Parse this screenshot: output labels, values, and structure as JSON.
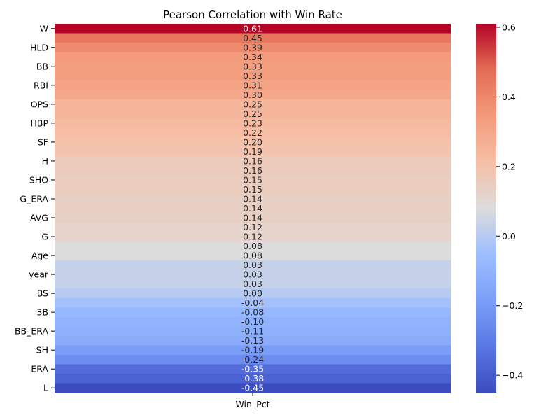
{
  "chart_data": {
    "type": "heatmap",
    "title": "Pearson Correlation with Win Rate",
    "column": "Win_Pct",
    "rows": [
      {
        "label": "W",
        "value": 0.61
      },
      {
        "label": "",
        "value": 0.45
      },
      {
        "label": "HLD",
        "value": 0.39
      },
      {
        "label": "",
        "value": 0.34
      },
      {
        "label": "BB",
        "value": 0.33
      },
      {
        "label": "",
        "value": 0.33
      },
      {
        "label": "RBI",
        "value": 0.31
      },
      {
        "label": "",
        "value": 0.3
      },
      {
        "label": "OPS",
        "value": 0.25
      },
      {
        "label": "",
        "value": 0.25
      },
      {
        "label": "HBP",
        "value": 0.23
      },
      {
        "label": "",
        "value": 0.22
      },
      {
        "label": "SF",
        "value": 0.2
      },
      {
        "label": "",
        "value": 0.19
      },
      {
        "label": "H",
        "value": 0.16
      },
      {
        "label": "",
        "value": 0.16
      },
      {
        "label": "SHO",
        "value": 0.15
      },
      {
        "label": "",
        "value": 0.15
      },
      {
        "label": "G_ERA",
        "value": 0.14
      },
      {
        "label": "",
        "value": 0.14
      },
      {
        "label": "AVG",
        "value": 0.14
      },
      {
        "label": "",
        "value": 0.12
      },
      {
        "label": "G",
        "value": 0.12
      },
      {
        "label": "",
        "value": 0.08
      },
      {
        "label": "Age",
        "value": 0.08
      },
      {
        "label": "",
        "value": 0.03
      },
      {
        "label": "year",
        "value": 0.03
      },
      {
        "label": "",
        "value": 0.03
      },
      {
        "label": "BS",
        "value": 0.0
      },
      {
        "label": "",
        "value": -0.04
      },
      {
        "label": "3B",
        "value": -0.08
      },
      {
        "label": "",
        "value": -0.1
      },
      {
        "label": "BB_ERA",
        "value": -0.11
      },
      {
        "label": "",
        "value": -0.13
      },
      {
        "label": "SH",
        "value": -0.19
      },
      {
        "label": "",
        "value": -0.24
      },
      {
        "label": "ERA",
        "value": -0.35
      },
      {
        "label": "",
        "value": -0.38
      },
      {
        "label": "L",
        "value": -0.45
      }
    ],
    "vmin": -0.45,
    "vmax": 0.61,
    "colormap": "coolwarm",
    "colorbar_ticks": [
      -0.4,
      -0.2,
      0.0,
      0.2,
      0.4,
      0.6
    ],
    "colorbar_tick_labels": [
      "−0.4",
      "−0.2",
      "0.0",
      "0.2",
      "0.4",
      "0.6"
    ],
    "value_format": "2 decimals"
  }
}
